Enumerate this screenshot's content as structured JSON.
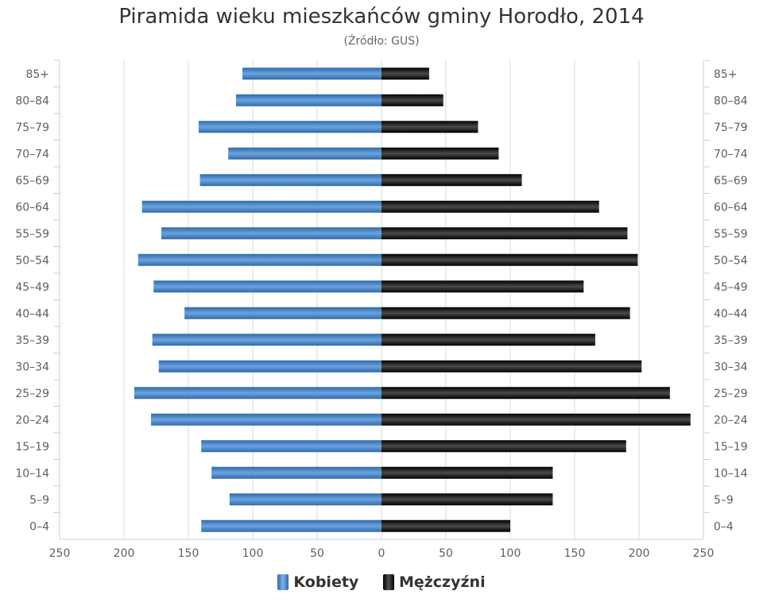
{
  "chart_data": {
    "type": "bar",
    "title": "Piramida wieku mieszkańców gminy Horodło, 2014",
    "subtitle": "(Źródło: GUS)",
    "categories": [
      "85+",
      "80–84",
      "75–79",
      "70–74",
      "65–69",
      "60–64",
      "55–59",
      "50–54",
      "45–49",
      "40–44",
      "35–39",
      "30–34",
      "25–29",
      "20–24",
      "15–19",
      "10–14",
      "5–9",
      "0–4"
    ],
    "series": [
      {
        "name": "Kobiety",
        "color": "#4a8ad4",
        "values": [
          108,
          113,
          142,
          119,
          141,
          186,
          171,
          189,
          177,
          153,
          178,
          173,
          192,
          179,
          140,
          132,
          118,
          140
        ]
      },
      {
        "name": "Mężczyźni",
        "color": "#1a1a1a",
        "values": [
          37,
          48,
          75,
          91,
          109,
          169,
          191,
          199,
          157,
          193,
          166,
          202,
          224,
          240,
          190,
          133,
          133,
          100
        ]
      }
    ],
    "x_ticks": [
      "250",
      "200",
      "150",
      "100",
      "50",
      "0",
      "50",
      "100",
      "150",
      "200",
      "250"
    ],
    "xlim": [
      -250,
      250
    ],
    "grid": true,
    "legend_position": "bottom"
  }
}
